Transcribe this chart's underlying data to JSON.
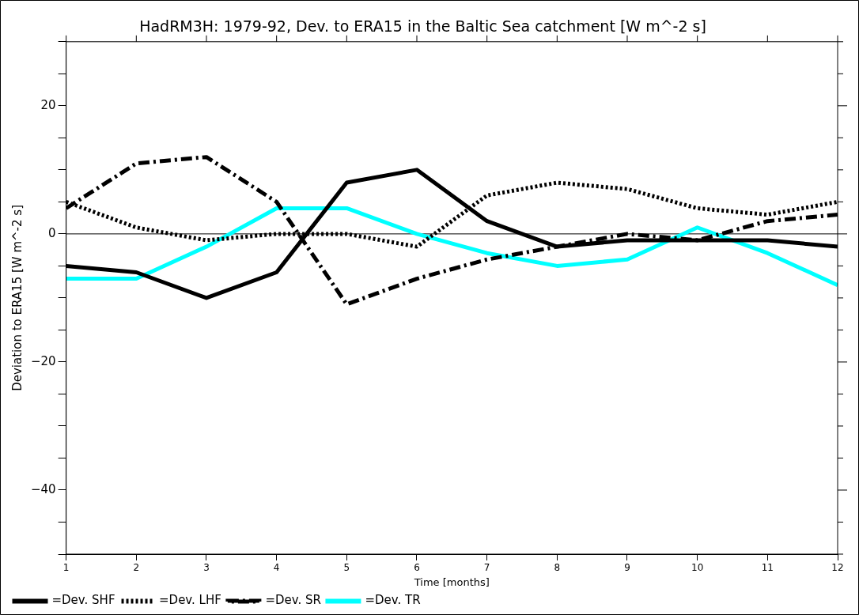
{
  "chart_data": {
    "type": "line",
    "title": "HadRM3H: 1979-92, Dev. to ERA15 in the Baltic Sea catchment [W m^-2 s]",
    "xlabel": "Time [months]",
    "ylabel": "Deviation to ERA15 [W m^-2 s]",
    "x": [
      1,
      2,
      3,
      4,
      5,
      6,
      7,
      8,
      9,
      10,
      11,
      12
    ],
    "series": [
      {
        "name": "=Dev. SHF",
        "color": "#000000",
        "line_style": "solid",
        "values": [
          -5,
          -6,
          -10,
          -6,
          8,
          10,
          2,
          -2,
          -1,
          -1,
          -1,
          -2
        ]
      },
      {
        "name": "=Dev. LHF",
        "color": "#000000",
        "line_style": "dotted",
        "values": [
          5,
          1,
          -1,
          0,
          0,
          -2,
          6,
          8,
          7,
          4,
          3,
          5
        ]
      },
      {
        "name": "=Dev. SR",
        "color": "#000000",
        "line_style": "dashed",
        "values": [
          4,
          11,
          12,
          5,
          -11,
          -7,
          -4,
          -2,
          0,
          -1,
          2,
          3
        ]
      },
      {
        "name": "=Dev. TR",
        "color": "#00ffff",
        "line_style": "solid",
        "values": [
          -7,
          -7,
          -2,
          4,
          4,
          0,
          -3,
          -5,
          -4,
          1,
          -3,
          -8
        ]
      }
    ],
    "xlim": [
      1,
      12
    ],
    "xticks": [
      1,
      2,
      3,
      4,
      5,
      6,
      7,
      8,
      9,
      10,
      11,
      12
    ],
    "ylim": [
      -50,
      30
    ],
    "yticks": [
      {
        "value": -50,
        "label": null
      },
      {
        "value": -45,
        "label": null
      },
      {
        "value": -40,
        "label": "−40"
      },
      {
        "value": -35,
        "label": null
      },
      {
        "value": -30,
        "label": null
      },
      {
        "value": -25,
        "label": null
      },
      {
        "value": -20,
        "label": "−20"
      },
      {
        "value": -15,
        "label": null
      },
      {
        "value": -10,
        "label": null
      },
      {
        "value": -5,
        "label": null
      },
      {
        "value": 0,
        "label": "0"
      },
      {
        "value": 5,
        "label": null
      },
      {
        "value": 10,
        "label": null
      },
      {
        "value": 15,
        "label": null
      },
      {
        "value": 20,
        "label": "20"
      },
      {
        "value": 25,
        "label": null
      },
      {
        "value": 30,
        "label": null
      }
    ],
    "ref_lines": [
      {
        "axis": "y",
        "value": 0,
        "color": "#000000"
      }
    ],
    "grid": false,
    "legend": "bottom left",
    "marker": "none"
  }
}
